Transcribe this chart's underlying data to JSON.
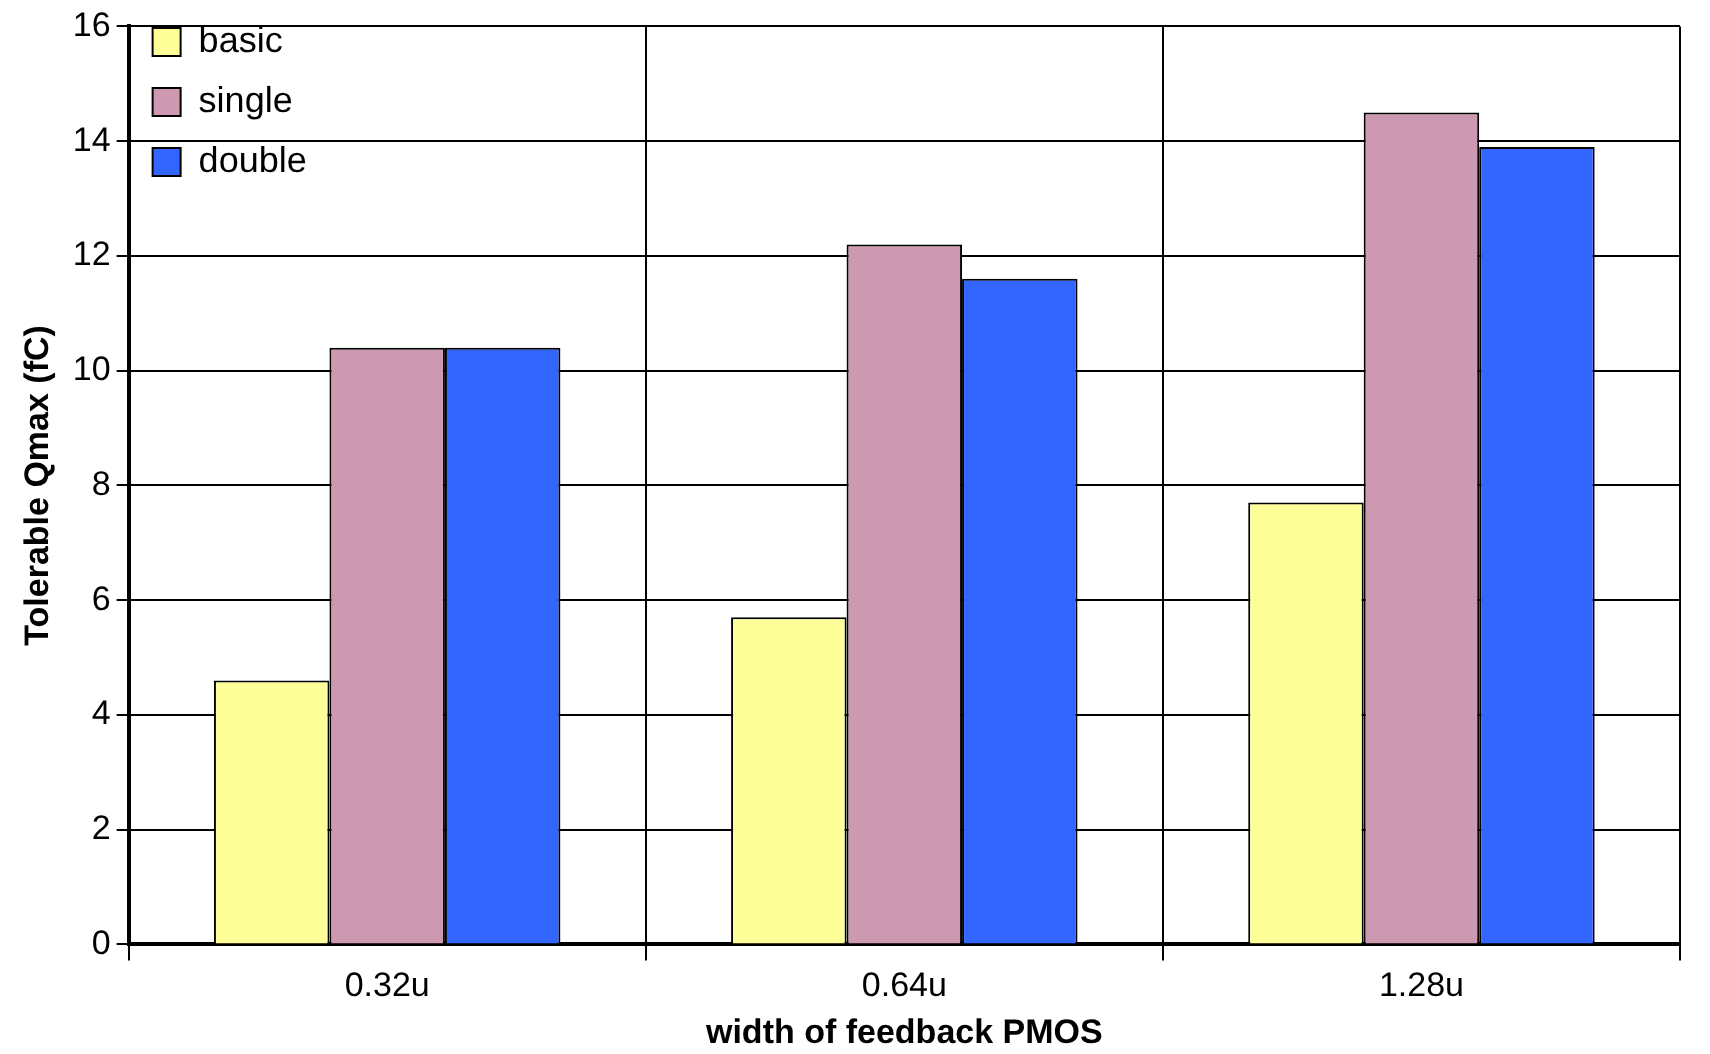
{
  "chart_data": {
    "type": "bar",
    "xlabel": "width of feedback PMOS",
    "ylabel": "Tolerable Qmax (fC)",
    "categories": [
      "0.32u",
      "0.64u",
      "1.28u"
    ],
    "series": [
      {
        "name": "basic",
        "color": "#ffff99",
        "values": [
          4.6,
          5.7,
          7.7
        ]
      },
      {
        "name": "single",
        "color": "#cc99b0",
        "values": [
          10.4,
          12.2,
          14.5
        ]
      },
      {
        "name": "double",
        "color": "#3366ff",
        "values": [
          10.4,
          11.6,
          13.9
        ]
      }
    ],
    "ylim": [
      0,
      16
    ],
    "yticks": [
      0,
      2,
      4,
      6,
      8,
      10,
      12,
      14,
      16
    ],
    "grid": true,
    "legend": "top left"
  }
}
